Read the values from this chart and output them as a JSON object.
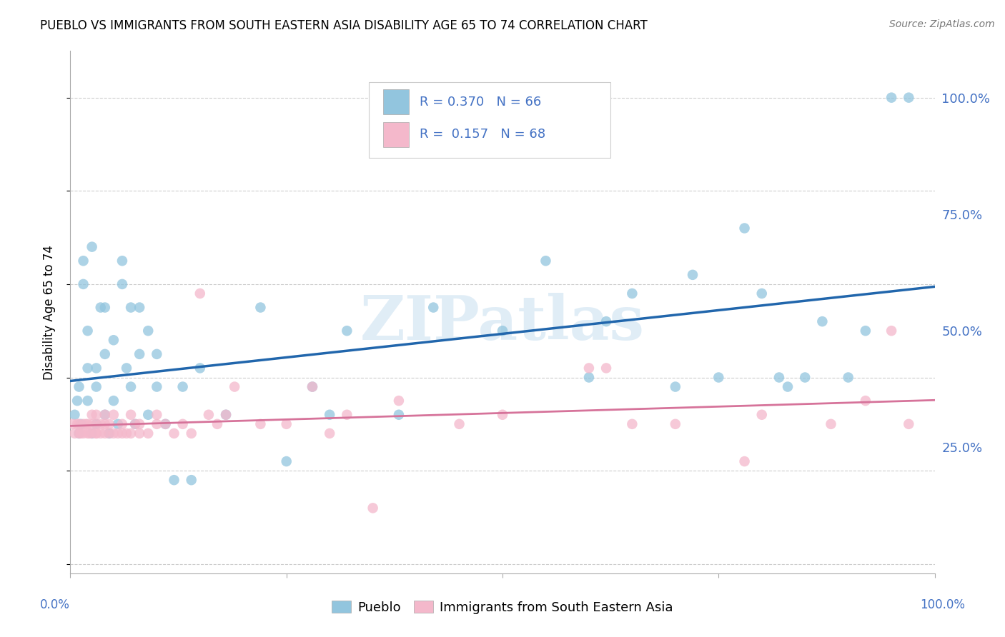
{
  "title": "PUEBLO VS IMMIGRANTS FROM SOUTH EASTERN ASIA DISABILITY AGE 65 TO 74 CORRELATION CHART",
  "source": "Source: ZipAtlas.com",
  "ylabel": "Disability Age 65 to 74",
  "xlim": [
    0.0,
    1.0
  ],
  "ylim": [
    -0.02,
    1.1
  ],
  "yticks": [
    0.0,
    0.25,
    0.5,
    0.75,
    1.0
  ],
  "ytick_labels": [
    "",
    "25.0%",
    "50.0%",
    "75.0%",
    "100.0%"
  ],
  "blue_color": "#92c5de",
  "pink_color": "#f4b8cb",
  "line_blue": "#2166ac",
  "line_pink": "#d6739a",
  "tick_color": "#4472c4",
  "watermark": "ZIPatlas",
  "blue_x": [
    0.005,
    0.008,
    0.01,
    0.01,
    0.012,
    0.015,
    0.015,
    0.02,
    0.02,
    0.02,
    0.025,
    0.025,
    0.03,
    0.03,
    0.03,
    0.035,
    0.04,
    0.04,
    0.04,
    0.045,
    0.05,
    0.05,
    0.055,
    0.06,
    0.06,
    0.065,
    0.07,
    0.07,
    0.075,
    0.08,
    0.08,
    0.09,
    0.09,
    0.1,
    0.1,
    0.11,
    0.12,
    0.13,
    0.14,
    0.15,
    0.18,
    0.22,
    0.25,
    0.28,
    0.3,
    0.32,
    0.38,
    0.42,
    0.5,
    0.55,
    0.6,
    0.62,
    0.65,
    0.7,
    0.72,
    0.75,
    0.78,
    0.8,
    0.82,
    0.83,
    0.85,
    0.87,
    0.9,
    0.92,
    0.95,
    0.97
  ],
  "blue_y": [
    0.32,
    0.35,
    0.28,
    0.38,
    0.3,
    0.6,
    0.65,
    0.35,
    0.42,
    0.5,
    0.28,
    0.68,
    0.3,
    0.38,
    0.42,
    0.55,
    0.32,
    0.45,
    0.55,
    0.28,
    0.35,
    0.48,
    0.3,
    0.6,
    0.65,
    0.42,
    0.38,
    0.55,
    0.3,
    0.45,
    0.55,
    0.32,
    0.5,
    0.38,
    0.45,
    0.3,
    0.18,
    0.38,
    0.18,
    0.42,
    0.32,
    0.55,
    0.22,
    0.38,
    0.32,
    0.5,
    0.32,
    0.55,
    0.5,
    0.65,
    0.4,
    0.52,
    0.58,
    0.38,
    0.62,
    0.4,
    0.72,
    0.58,
    0.4,
    0.38,
    0.4,
    0.52,
    0.4,
    0.5,
    1.0,
    1.0
  ],
  "pink_x": [
    0.003,
    0.005,
    0.008,
    0.01,
    0.01,
    0.012,
    0.015,
    0.015,
    0.018,
    0.02,
    0.02,
    0.022,
    0.025,
    0.025,
    0.025,
    0.03,
    0.03,
    0.03,
    0.03,
    0.035,
    0.035,
    0.04,
    0.04,
    0.04,
    0.045,
    0.045,
    0.05,
    0.05,
    0.055,
    0.06,
    0.06,
    0.065,
    0.07,
    0.07,
    0.075,
    0.08,
    0.08,
    0.09,
    0.1,
    0.1,
    0.11,
    0.12,
    0.13,
    0.14,
    0.15,
    0.16,
    0.17,
    0.18,
    0.19,
    0.22,
    0.25,
    0.28,
    0.3,
    0.32,
    0.35,
    0.38,
    0.45,
    0.5,
    0.6,
    0.62,
    0.65,
    0.7,
    0.78,
    0.8,
    0.88,
    0.92,
    0.95,
    0.97
  ],
  "pink_y": [
    0.3,
    0.28,
    0.3,
    0.28,
    0.3,
    0.28,
    0.28,
    0.3,
    0.3,
    0.28,
    0.3,
    0.28,
    0.28,
    0.3,
    0.32,
    0.28,
    0.3,
    0.32,
    0.28,
    0.28,
    0.3,
    0.28,
    0.3,
    0.32,
    0.28,
    0.3,
    0.28,
    0.32,
    0.28,
    0.28,
    0.3,
    0.28,
    0.28,
    0.32,
    0.3,
    0.28,
    0.3,
    0.28,
    0.3,
    0.32,
    0.3,
    0.28,
    0.3,
    0.28,
    0.58,
    0.32,
    0.3,
    0.32,
    0.38,
    0.3,
    0.3,
    0.38,
    0.28,
    0.32,
    0.12,
    0.35,
    0.3,
    0.32,
    0.42,
    0.42,
    0.3,
    0.3,
    0.22,
    0.32,
    0.3,
    0.35,
    0.5,
    0.3
  ]
}
